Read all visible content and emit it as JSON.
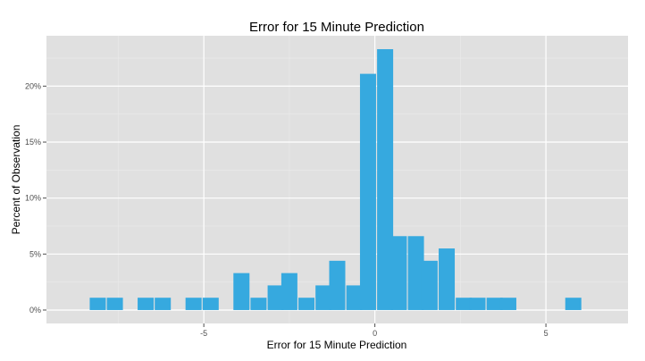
{
  "chart_data": {
    "type": "bar",
    "title": "Error for 15 Minute Prediction",
    "xlabel": "Error for 15 Minute Prediction",
    "ylabel": "Percent of Observation",
    "xlim": [
      -9.6,
      7.4
    ],
    "ylim": [
      -1.2,
      24.5
    ],
    "bin_width": 0.47,
    "x_ticks": [
      -5,
      0,
      5
    ],
    "x_tick_labels": [
      "-5",
      "0",
      "5"
    ],
    "y_ticks": [
      0,
      5,
      10,
      15,
      20
    ],
    "y_tick_labels": [
      "0%",
      "5%",
      "10%",
      "15%",
      "20%"
    ],
    "grid": true,
    "legend": "none",
    "bar_color": "#36a9df",
    "panel_color": "#e0e0e0",
    "bins": [
      {
        "x": -8.1,
        "value": 1.1
      },
      {
        "x": -7.6,
        "value": 1.1
      },
      {
        "x": -6.7,
        "value": 1.1
      },
      {
        "x": -6.2,
        "value": 1.1
      },
      {
        "x": -5.3,
        "value": 1.1
      },
      {
        "x": -4.8,
        "value": 1.1
      },
      {
        "x": -4.3,
        "value": 0.0
      },
      {
        "x": -3.9,
        "value": 3.3
      },
      {
        "x": -3.4,
        "value": 1.1
      },
      {
        "x": -2.9,
        "value": 2.2
      },
      {
        "x": -2.5,
        "value": 3.3
      },
      {
        "x": -2.0,
        "value": 1.1
      },
      {
        "x": -1.5,
        "value": 2.2
      },
      {
        "x": -1.1,
        "value": 4.4
      },
      {
        "x": -0.6,
        "value": 2.2
      },
      {
        "x": -0.2,
        "value": 21.1
      },
      {
        "x": 0.3,
        "value": 23.3
      },
      {
        "x": 0.7,
        "value": 6.6
      },
      {
        "x": 1.2,
        "value": 6.6
      },
      {
        "x": 1.6,
        "value": 4.4
      },
      {
        "x": 2.1,
        "value": 5.5
      },
      {
        "x": 2.6,
        "value": 1.1
      },
      {
        "x": 3.0,
        "value": 1.1
      },
      {
        "x": 3.5,
        "value": 1.1
      },
      {
        "x": 3.9,
        "value": 1.1
      },
      {
        "x": 5.8,
        "value": 1.1
      }
    ]
  }
}
